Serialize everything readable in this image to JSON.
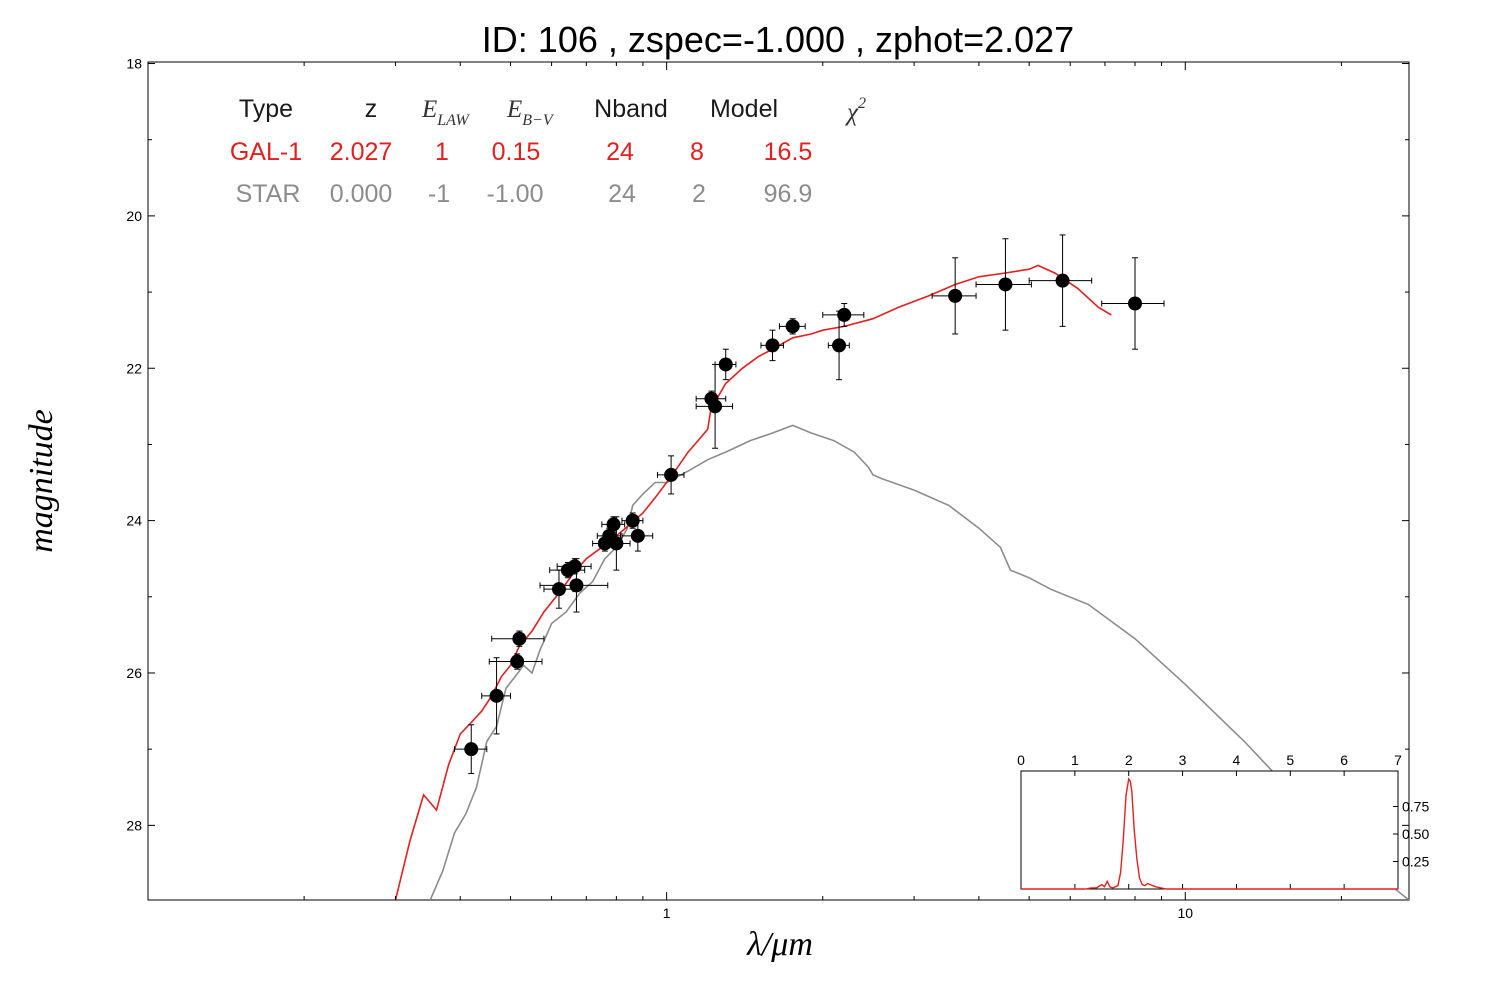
{
  "title": "ID:  106   , zspec=-1.000 , zphot=2.027",
  "colors": {
    "galaxy": "#e2201f",
    "star": "#8c8c8c",
    "points": "#000000",
    "axis": "#000000"
  },
  "chart_data": [
    {
      "type": "scatter",
      "title": "ID:  106   , zspec=-1.000 , zphot=2.027",
      "xlabel": "λ/μm",
      "ylabel": "magnitude",
      "xscale": "log",
      "xlim": [
        0.1,
        27
      ],
      "ylim": [
        28.98,
        17.98
      ],
      "y_inverted": true,
      "x_ticks": [
        1,
        10
      ],
      "x_tick_labels": [
        "1",
        "10"
      ],
      "y_ticks": [
        18,
        20,
        22,
        24,
        26,
        28
      ],
      "y_tick_labels": [
        "18",
        "20",
        "22",
        "24",
        "26",
        "28"
      ],
      "grid": false,
      "table": {
        "headers": [
          "Type",
          "z",
          "E_LAW",
          "E_B−V",
          "Nband",
          "Model",
          "χ²"
        ],
        "header_math": {
          "e_law_main": "E",
          "e_law_sub": "LAW",
          "ebv_main": "E",
          "ebv_sub": "B−V",
          "chi_main": "χ",
          "chi_sup": "2"
        },
        "rows": [
          {
            "type": "GAL-1",
            "z": "2.027",
            "elaw": "1",
            "ebv": "0.15",
            "nband": "24",
            "model": "8",
            "chi2": "16.5"
          },
          {
            "type": "STAR",
            "z": "0.000",
            "elaw": "-1",
            "ebv": "-1.00",
            "nband": "24",
            "model": "2",
            "chi2": "96.9"
          }
        ]
      },
      "points": [
        {
          "x": 0.42,
          "y": 27.0,
          "xerr": 0.03,
          "yerr": 0.32
        },
        {
          "x": 0.47,
          "y": 26.3,
          "xerr": 0.03,
          "yerr": 0.5
        },
        {
          "x": 0.52,
          "y": 25.55,
          "xerr": 0.06,
          "yerr": 0.1
        },
        {
          "x": 0.515,
          "y": 25.85,
          "xerr": 0.06,
          "yerr": 0.1
        },
        {
          "x": 0.62,
          "y": 24.9,
          "xerr": 0.04,
          "yerr": 0.25
        },
        {
          "x": 0.645,
          "y": 24.65,
          "xerr": 0.05,
          "yerr": 0.1
        },
        {
          "x": 0.665,
          "y": 24.6,
          "xerr": 0.05,
          "yerr": 0.1
        },
        {
          "x": 0.67,
          "y": 24.85,
          "xerr": 0.1,
          "yerr": 0.35
        },
        {
          "x": 0.76,
          "y": 24.3,
          "xerr": 0.04,
          "yerr": 0.1
        },
        {
          "x": 0.775,
          "y": 24.2,
          "xerr": 0.04,
          "yerr": 0.1
        },
        {
          "x": 0.79,
          "y": 24.05,
          "xerr": 0.04,
          "yerr": 0.1
        },
        {
          "x": 0.8,
          "y": 24.3,
          "xerr": 0.05,
          "yerr": 0.35
        },
        {
          "x": 0.86,
          "y": 24.0,
          "xerr": 0.04,
          "yerr": 0.1
        },
        {
          "x": 0.88,
          "y": 24.2,
          "xerr": 0.06,
          "yerr": 0.2
        },
        {
          "x": 1.02,
          "y": 23.4,
          "xerr": 0.06,
          "yerr": 0.25
        },
        {
          "x": 1.22,
          "y": 22.4,
          "xerr": 0.08,
          "yerr": 0.1
        },
        {
          "x": 1.24,
          "y": 22.5,
          "xerr": 0.1,
          "yerr": 0.55
        },
        {
          "x": 1.3,
          "y": 21.95,
          "xerr": 0.06,
          "yerr": 0.2
        },
        {
          "x": 1.6,
          "y": 21.7,
          "xerr": 0.08,
          "yerr": 0.2
        },
        {
          "x": 1.75,
          "y": 21.45,
          "xerr": 0.1,
          "yerr": 0.1
        },
        {
          "x": 2.15,
          "y": 21.7,
          "xerr": 0.1,
          "yerr": 0.45
        },
        {
          "x": 2.2,
          "y": 21.3,
          "xerr": 0.2,
          "yerr": 0.15
        },
        {
          "x": 3.6,
          "y": 21.05,
          "xerr": 0.35,
          "yerr": 0.5
        },
        {
          "x": 4.5,
          "y": 20.9,
          "xerr": 0.55,
          "yerr": 0.6
        },
        {
          "x": 5.8,
          "y": 20.85,
          "xerr": 0.8,
          "yerr": 0.6
        },
        {
          "x": 8.0,
          "y": 21.15,
          "xerr": 1.1,
          "yerr": 0.6
        }
      ],
      "series": [
        {
          "name": "GAL-1",
          "x": [
            0.3,
            0.32,
            0.34,
            0.36,
            0.38,
            0.4,
            0.42,
            0.44,
            0.46,
            0.48,
            0.5,
            0.52,
            0.55,
            0.58,
            0.62,
            0.66,
            0.7,
            0.75,
            0.8,
            0.85,
            0.9,
            0.95,
            1.0,
            1.05,
            1.1,
            1.15,
            1.2,
            1.22,
            1.25,
            1.3,
            1.4,
            1.5,
            1.6,
            1.75,
            1.9,
            2.0,
            2.2,
            2.5,
            2.8,
            3.2,
            3.6,
            4.0,
            4.5,
            5.0,
            5.2,
            5.6,
            6.2,
            6.8,
            7.2
          ],
          "y": [
            28.98,
            28.2,
            27.6,
            27.8,
            27.2,
            26.8,
            26.65,
            26.5,
            26.3,
            26.05,
            25.9,
            25.65,
            25.45,
            25.2,
            24.95,
            24.7,
            24.5,
            24.35,
            24.2,
            24.05,
            23.9,
            23.7,
            23.5,
            23.3,
            23.1,
            22.95,
            22.8,
            22.5,
            22.4,
            22.2,
            22.0,
            21.85,
            21.75,
            21.6,
            21.55,
            21.5,
            21.45,
            21.35,
            21.2,
            21.05,
            20.9,
            20.8,
            20.75,
            20.7,
            20.65,
            20.75,
            20.95,
            21.2,
            21.3
          ]
        },
        {
          "name": "STAR",
          "x": [
            0.35,
            0.37,
            0.39,
            0.41,
            0.43,
            0.45,
            0.47,
            0.49,
            0.51,
            0.53,
            0.55,
            0.57,
            0.6,
            0.64,
            0.68,
            0.72,
            0.76,
            0.8,
            0.84,
            0.86,
            0.9,
            0.95,
            1.0,
            1.1,
            1.2,
            1.3,
            1.45,
            1.6,
            1.75,
            1.9,
            2.1,
            2.3,
            2.45,
            2.5,
            2.6,
            3.0,
            3.5,
            4.0,
            4.4,
            4.6,
            5.0,
            5.5,
            6.5,
            8.0,
            10.0,
            13.0,
            16.0,
            20.0,
            25.0,
            27.0
          ],
          "y": [
            28.98,
            28.6,
            28.1,
            27.85,
            27.5,
            26.9,
            26.7,
            26.2,
            26.05,
            25.9,
            26.0,
            25.7,
            25.35,
            25.2,
            24.95,
            24.8,
            24.5,
            24.35,
            24.1,
            23.8,
            23.65,
            23.5,
            23.5,
            23.35,
            23.2,
            23.1,
            22.95,
            22.85,
            22.75,
            22.85,
            22.95,
            23.1,
            23.3,
            23.4,
            23.45,
            23.6,
            23.8,
            24.1,
            24.35,
            24.65,
            24.75,
            24.9,
            25.1,
            25.55,
            26.15,
            26.9,
            27.55,
            28.2,
            28.8,
            28.98
          ]
        }
      ]
    },
    {
      "type": "line",
      "xlim": [
        0,
        7
      ],
      "ylim": [
        0,
        1.0
      ],
      "x_ticks": [
        0,
        1,
        2,
        3,
        4,
        5,
        6,
        7
      ],
      "x_tick_labels": [
        "0",
        "1",
        "2",
        "3",
        "4",
        "5",
        "6",
        "7"
      ],
      "y_ticks": [
        0.25,
        0.5,
        0.75
      ],
      "y_tick_labels": [
        "0.25",
        "0.50",
        "0.75"
      ],
      "series": [
        {
          "x": [
            0,
            1.2,
            1.3,
            1.4,
            1.5,
            1.55,
            1.6,
            1.65,
            1.7,
            1.8,
            1.85,
            1.9,
            1.95,
            2.0,
            2.03,
            2.06,
            2.1,
            2.15,
            2.2,
            2.25,
            2.3,
            2.35,
            2.4,
            2.5,
            2.6,
            2.7,
            3.0,
            7.0
          ],
          "y": [
            0,
            0,
            0.01,
            0.01,
            0.04,
            0.02,
            0.07,
            0.02,
            0.01,
            0.03,
            0.15,
            0.45,
            0.85,
            1.0,
            0.98,
            0.88,
            0.55,
            0.28,
            0.1,
            0.04,
            0.03,
            0.05,
            0.04,
            0.02,
            0.01,
            0.0,
            0.0,
            0.0
          ]
        }
      ]
    }
  ]
}
